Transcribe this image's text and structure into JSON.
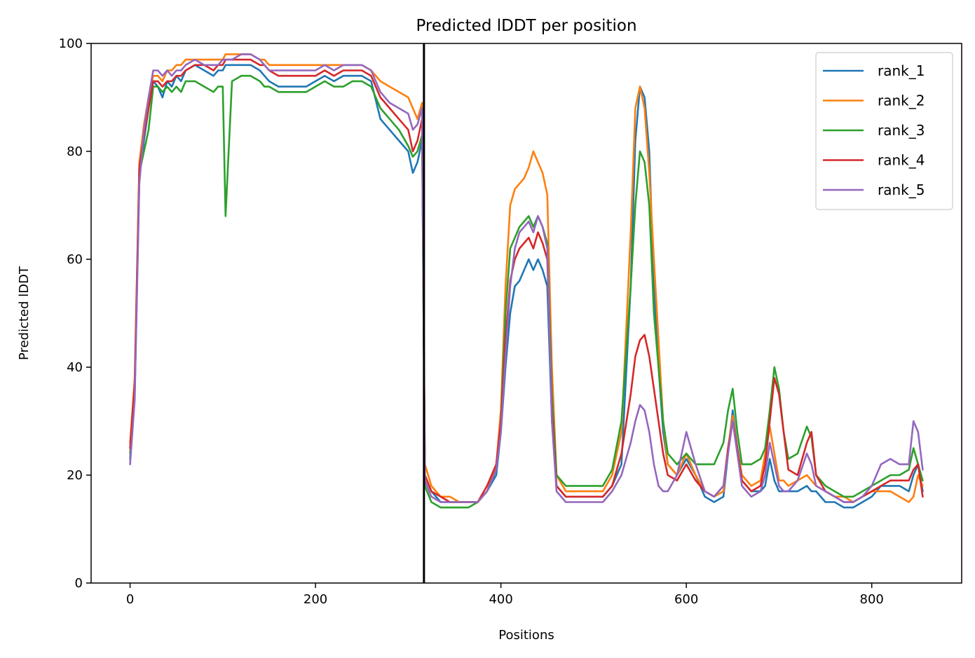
{
  "chart_data": {
    "type": "line",
    "title": "Predicted lDDT per position",
    "xlabel": "Positions",
    "ylabel": "Predicted lDDT",
    "xlim": [
      -42,
      897
    ],
    "ylim": [
      0,
      100
    ],
    "xticks": [
      0,
      200,
      400,
      600,
      800
    ],
    "yticks": [
      0,
      20,
      40,
      60,
      80,
      100
    ],
    "grid": false,
    "legend_position": "top-right",
    "vline": {
      "x": 317,
      "color": "#000000"
    },
    "x": [
      0,
      5,
      10,
      15,
      20,
      25,
      30,
      35,
      40,
      45,
      50,
      55,
      60,
      70,
      80,
      90,
      95,
      100,
      103,
      110,
      120,
      130,
      140,
      145,
      150,
      160,
      170,
      180,
      190,
      200,
      210,
      220,
      230,
      240,
      250,
      260,
      270,
      280,
      290,
      300,
      305,
      310,
      315,
      318,
      325,
      335,
      345,
      355,
      365,
      375,
      385,
      395,
      400,
      405,
      410,
      415,
      420,
      425,
      430,
      435,
      440,
      445,
      450,
      455,
      460,
      470,
      480,
      490,
      500,
      510,
      520,
      530,
      540,
      545,
      550,
      555,
      560,
      565,
      570,
      575,
      580,
      590,
      600,
      610,
      620,
      630,
      640,
      645,
      650,
      655,
      660,
      670,
      680,
      685,
      690,
      695,
      700,
      705,
      710,
      720,
      730,
      735,
      740,
      750,
      760,
      770,
      780,
      790,
      800,
      810,
      820,
      830,
      840,
      845,
      850,
      855
    ],
    "series": [
      {
        "name": "rank_1",
        "color": "#1f77b4",
        "values": [
          23,
          35,
          75,
          82,
          88,
          93,
          92,
          90,
          93,
          92,
          94,
          93,
          95,
          96,
          95,
          94,
          95,
          95,
          96,
          96,
          96,
          96,
          95,
          94,
          93,
          92,
          92,
          92,
          92,
          93,
          94,
          93,
          94,
          94,
          94,
          93,
          86,
          84,
          82,
          80,
          76,
          78,
          82,
          20,
          17,
          15,
          15,
          15,
          15,
          15,
          17,
          20,
          28,
          40,
          50,
          55,
          56,
          58,
          60,
          58,
          60,
          58,
          55,
          30,
          18,
          16,
          16,
          16,
          16,
          16,
          18,
          22,
          55,
          82,
          92,
          90,
          80,
          55,
          40,
          28,
          22,
          20,
          23,
          20,
          16,
          15,
          16,
          24,
          32,
          25,
          19,
          17,
          17,
          18,
          23,
          19,
          17,
          17,
          17,
          17,
          18,
          17,
          17,
          15,
          15,
          14,
          14,
          15,
          16,
          18,
          18,
          18,
          17,
          20,
          22,
          17
        ]
      },
      {
        "name": "rank_2",
        "color": "#ff7f0e",
        "values": [
          26,
          38,
          78,
          85,
          90,
          94,
          94,
          93,
          95,
          95,
          96,
          96,
          97,
          97,
          97,
          97,
          97,
          97,
          98,
          98,
          98,
          98,
          97,
          97,
          96,
          96,
          96,
          96,
          96,
          96,
          96,
          96,
          96,
          96,
          96,
          95,
          93,
          92,
          91,
          90,
          88,
          86,
          89,
          22,
          18,
          16,
          16,
          15,
          15,
          15,
          17,
          22,
          32,
          55,
          70,
          73,
          74,
          75,
          77,
          80,
          78,
          76,
          72,
          40,
          20,
          17,
          17,
          17,
          17,
          17,
          20,
          28,
          65,
          88,
          92,
          88,
          76,
          60,
          45,
          30,
          22,
          20,
          24,
          20,
          17,
          16,
          17,
          25,
          31,
          25,
          20,
          18,
          19,
          24,
          29,
          24,
          19,
          19,
          18,
          19,
          20,
          19,
          18,
          17,
          16,
          16,
          15,
          16,
          17,
          17,
          17,
          16,
          15,
          16,
          20,
          18
        ]
      },
      {
        "name": "rank_3",
        "color": "#2ca02c",
        "values": [
          24,
          36,
          76,
          80,
          84,
          92,
          92,
          91,
          92,
          91,
          92,
          91,
          93,
          93,
          92,
          91,
          92,
          92,
          68,
          93,
          94,
          94,
          93,
          92,
          92,
          91,
          91,
          91,
          91,
          92,
          93,
          92,
          92,
          93,
          93,
          92,
          88,
          86,
          84,
          81,
          79,
          80,
          83,
          18,
          15,
          14,
          14,
          14,
          14,
          15,
          17,
          21,
          30,
          50,
          62,
          64,
          66,
          67,
          68,
          66,
          68,
          66,
          63,
          35,
          20,
          18,
          18,
          18,
          18,
          18,
          21,
          30,
          55,
          70,
          80,
          78,
          70,
          50,
          40,
          30,
          24,
          22,
          24,
          22,
          22,
          22,
          26,
          32,
          36,
          28,
          22,
          22,
          23,
          25,
          32,
          40,
          36,
          28,
          23,
          24,
          29,
          27,
          20,
          18,
          17,
          16,
          16,
          17,
          18,
          19,
          20,
          20,
          21,
          25,
          22,
          19
        ]
      },
      {
        "name": "rank_4",
        "color": "#d62728",
        "values": [
          25,
          37,
          77,
          83,
          88,
          93,
          93,
          92,
          93,
          93,
          94,
          94,
          95,
          96,
          96,
          95,
          96,
          96,
          97,
          97,
          97,
          97,
          96,
          96,
          95,
          94,
          94,
          94,
          94,
          94,
          95,
          94,
          95,
          95,
          95,
          94,
          90,
          88,
          86,
          84,
          80,
          82,
          86,
          20,
          17,
          16,
          15,
          15,
          15,
          15,
          18,
          22,
          30,
          45,
          56,
          60,
          62,
          63,
          64,
          62,
          65,
          63,
          60,
          32,
          18,
          16,
          16,
          16,
          16,
          16,
          18,
          24,
          35,
          42,
          45,
          46,
          42,
          36,
          30,
          24,
          20,
          19,
          22,
          19,
          17,
          16,
          18,
          25,
          30,
          25,
          19,
          17,
          18,
          22,
          30,
          38,
          35,
          28,
          21,
          20,
          26,
          28,
          20,
          17,
          16,
          15,
          15,
          16,
          17,
          18,
          19,
          19,
          19,
          21,
          22,
          16
        ]
      },
      {
        "name": "rank_5",
        "color": "#9467bd",
        "values": [
          22,
          34,
          74,
          84,
          90,
          95,
          95,
          94,
          95,
          94,
          95,
          95,
          96,
          97,
          96,
          96,
          96,
          97,
          97,
          97,
          98,
          98,
          97,
          96,
          95,
          95,
          95,
          95,
          95,
          95,
          96,
          95,
          96,
          96,
          96,
          95,
          91,
          89,
          88,
          87,
          84,
          85,
          88,
          19,
          16,
          15,
          15,
          15,
          15,
          15,
          17,
          21,
          28,
          42,
          55,
          62,
          65,
          66,
          67,
          65,
          68,
          66,
          62,
          30,
          17,
          15,
          15,
          15,
          15,
          15,
          17,
          20,
          26,
          30,
          33,
          32,
          28,
          22,
          18,
          17,
          17,
          20,
          28,
          22,
          17,
          16,
          18,
          24,
          30,
          24,
          18,
          16,
          17,
          20,
          26,
          22,
          18,
          17,
          17,
          19,
          24,
          22,
          18,
          17,
          16,
          15,
          15,
          16,
          18,
          22,
          23,
          22,
          22,
          30,
          28,
          21
        ]
      }
    ]
  }
}
